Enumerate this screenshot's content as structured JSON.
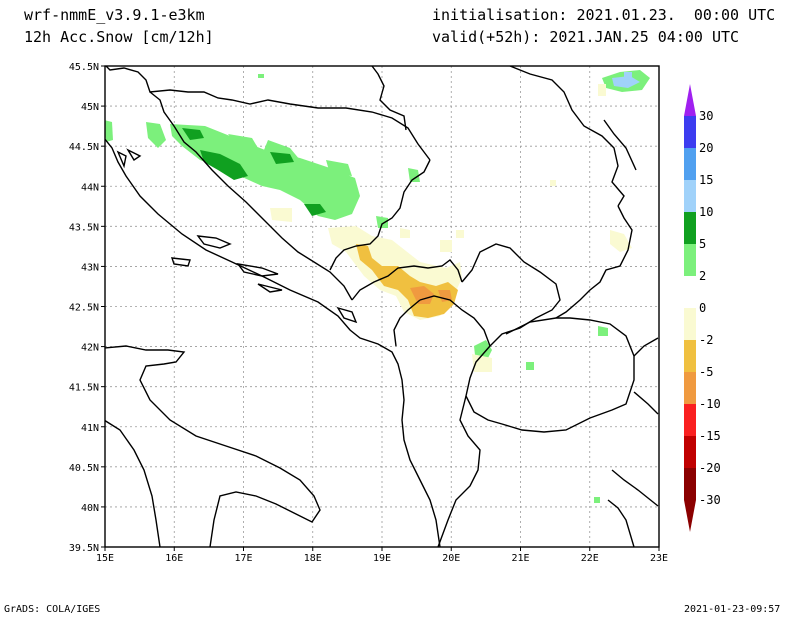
{
  "header": {
    "model": "wrf-nmmE_v3.9.1-e3km",
    "field": "12h Acc.Snow [cm/12h]",
    "init": "initialisation: 2021.01.23.  00:00 UTC",
    "valid": "valid(+52h): 2021.JAN.25 04:00 UTC"
  },
  "map": {
    "lon_labels": [
      "15E",
      "16E",
      "17E",
      "18E",
      "19E",
      "20E",
      "21E",
      "22E",
      "23E"
    ],
    "lat_labels": [
      "45.5N",
      "45N",
      "44.5N",
      "44N",
      "43.5N",
      "43N",
      "42.5N",
      "42N",
      "41.5N",
      "41N",
      "40.5N",
      "40N",
      "39.5N"
    ]
  },
  "colorbar": {
    "levels": [
      "30",
      "20",
      "15",
      "10",
      "5",
      "2",
      "0",
      "-2",
      "-5",
      "-10",
      "-15",
      "-20",
      "-30"
    ],
    "colors": [
      "#a020f0",
      "#3c3cf0",
      "#50a0f0",
      "#a0d2fa",
      "#10a020",
      "#7cf07c",
      "#ffffff",
      "#fafad2",
      "#f0c040",
      "#f09a40",
      "#fa2020",
      "#c00000",
      "#8b0000"
    ]
  },
  "footer": {
    "left": "GrADS: COLA/IGES",
    "right": "2021-01-23-09:57"
  }
}
